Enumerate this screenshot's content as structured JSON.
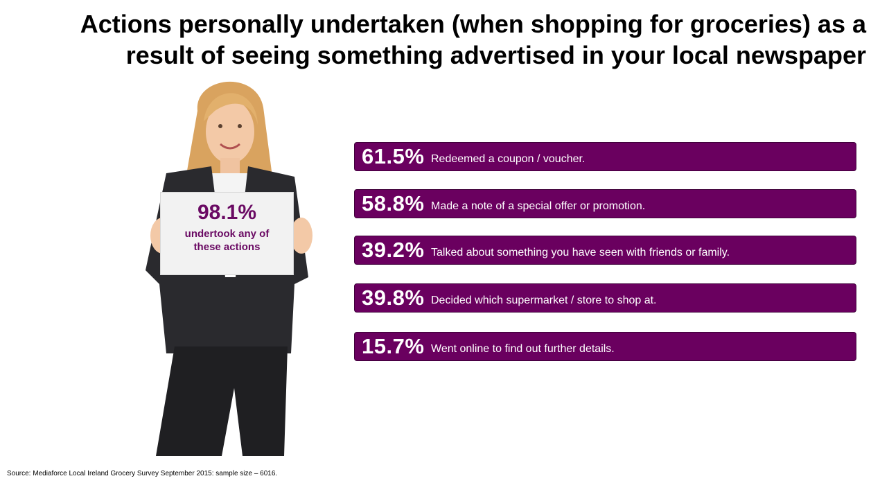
{
  "title": "Actions personally undertaken (when shopping for groceries) as a result of seeing something advertised in your local newspaper",
  "sign": {
    "value": "98.1%",
    "text": "undertook any of these actions"
  },
  "actions": [
    {
      "value": "61.5%",
      "label": "Redeemed a coupon / voucher."
    },
    {
      "value": "58.8%",
      "label": "Made a note of a special offer or promotion."
    },
    {
      "value": "39.2%",
      "label": "Talked about something you have seen with friends or family."
    },
    {
      "value": "39.8%",
      "label": "Decided which supermarket / store to shop at."
    },
    {
      "value": "15.7%",
      "label": "Went online to find out further details."
    }
  ],
  "source": "Source: Mediaforce Local Ireland Grocery Survey September 2015: sample size – 6016.",
  "colors": {
    "accent": "#6a005f",
    "sign_text": "#6a0a63"
  }
}
